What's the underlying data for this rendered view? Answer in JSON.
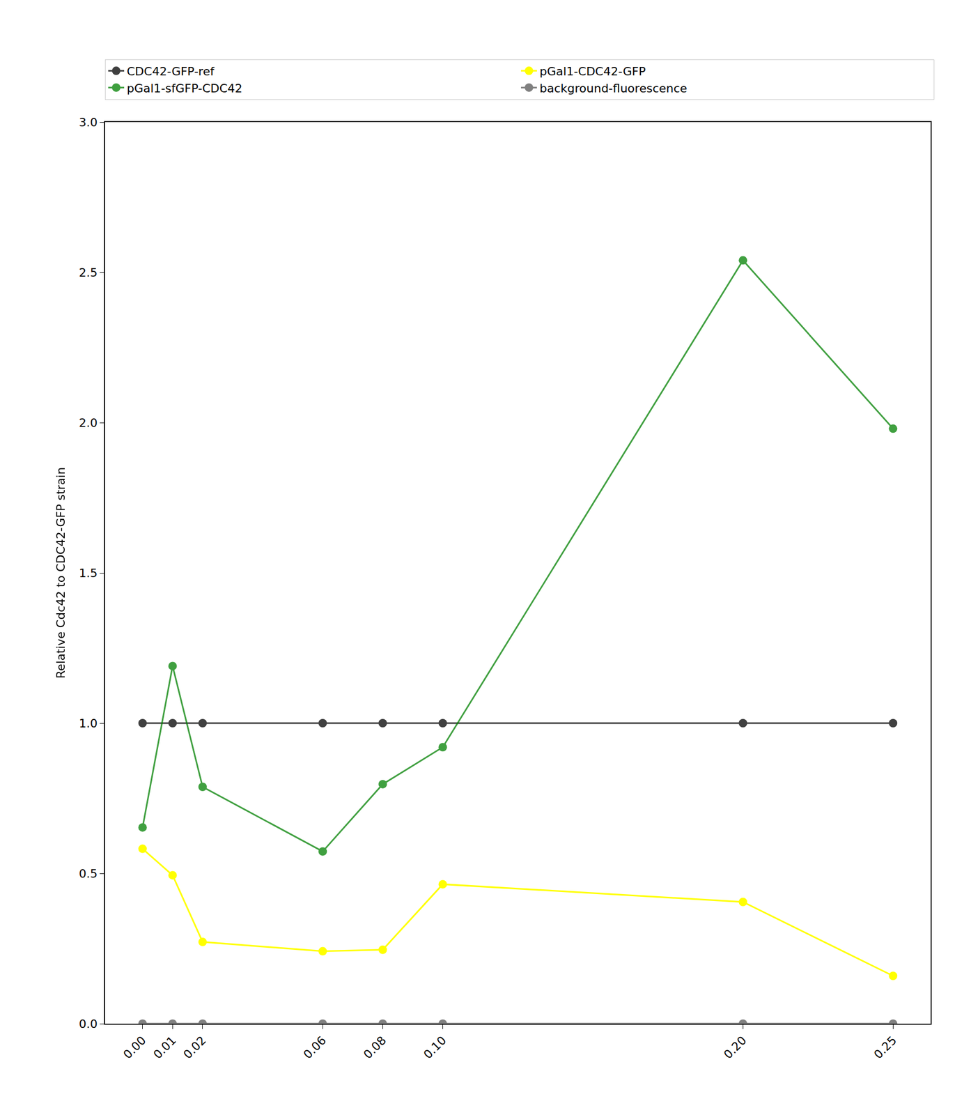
{
  "chart_data": {
    "type": "line",
    "y_label": "Relative Cdc42 to CDC42-GFP strain",
    "x": [
      0,
      0.01,
      0.02,
      0.06,
      0.08,
      0.1,
      0.2,
      0.25
    ],
    "xlim": [
      -0.0125,
      0.2625
    ],
    "xticks": [
      {
        "value": 0,
        "label": "0.00"
      },
      0.01,
      0.02,
      0.06,
      0.08,
      {
        "value": 0.1,
        "label": "0.10"
      },
      {
        "value": 0.2,
        "label": "0.20"
      },
      0.25
    ],
    "ylim": [
      0,
      3
    ],
    "yticks": [
      {
        "value": 0,
        "label": "0.0"
      },
      0.5,
      {
        "value": 1,
        "label": "1.0"
      },
      1.5,
      {
        "value": 2,
        "label": "2.0"
      },
      2.5,
      {
        "value": 3,
        "label": "3.0"
      }
    ],
    "grid": false,
    "legend": "top",
    "marker": "circle",
    "line_style": "solid",
    "series": [
      {
        "name": "CDC42-GFP-ref",
        "color": "#000000",
        "values": [
          1.0,
          1.0,
          1.0,
          1.0,
          1.0,
          1.0,
          1.0,
          1.0
        ]
      },
      {
        "name": "pGal1-CDC42-GFP",
        "color": "#ffff00",
        "values": [
          0.582,
          0.494,
          0.272,
          0.241,
          0.246,
          0.464,
          0.405,
          0.159
        ]
      },
      {
        "name": "pGal1-sfGFP-CDC42",
        "color": "#008000",
        "values": [
          0.653,
          1.19,
          0.788,
          0.573,
          0.797,
          0.92,
          2.54,
          1.98
        ]
      },
      {
        "name": "background-fluorescence",
        "color": "#808080",
        "values": [
          0,
          0,
          0,
          0,
          0,
          0,
          0,
          0
        ]
      }
    ]
  }
}
